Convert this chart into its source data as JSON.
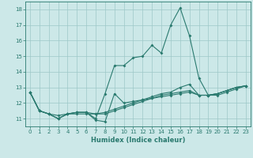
{
  "xlabel": "Humidex (Indice chaleur)",
  "x": [
    0,
    1,
    2,
    3,
    4,
    5,
    6,
    7,
    8,
    9,
    10,
    11,
    12,
    13,
    14,
    15,
    16,
    17,
    18,
    19,
    20,
    21,
    22,
    23
  ],
  "series1": [
    12.7,
    11.5,
    11.3,
    11.0,
    11.3,
    11.4,
    11.4,
    10.9,
    10.8,
    12.6,
    12.0,
    12.1,
    12.2,
    12.4,
    12.6,
    12.7,
    13.0,
    13.2,
    12.5,
    12.5,
    12.6,
    12.8,
    13.0,
    13.1
  ],
  "series2": [
    12.7,
    11.5,
    11.3,
    11.0,
    11.3,
    11.4,
    11.4,
    11.0,
    12.6,
    14.4,
    14.4,
    14.9,
    15.0,
    15.7,
    15.2,
    17.0,
    18.1,
    16.3,
    13.6,
    12.5,
    12.5,
    12.7,
    12.9,
    13.1
  ],
  "series3": [
    12.7,
    11.5,
    11.3,
    11.0,
    11.3,
    11.3,
    11.3,
    11.3,
    11.3,
    11.5,
    11.7,
    11.9,
    12.1,
    12.3,
    12.4,
    12.5,
    12.6,
    12.7,
    12.5,
    12.5,
    12.6,
    12.8,
    13.0,
    13.1
  ],
  "series4": [
    12.7,
    11.5,
    11.3,
    11.2,
    11.3,
    11.4,
    11.4,
    11.3,
    11.4,
    11.6,
    11.8,
    12.0,
    12.2,
    12.3,
    12.5,
    12.6,
    12.7,
    12.8,
    12.5,
    12.5,
    12.6,
    12.8,
    13.0,
    13.1
  ],
  "line_color": "#2a7a6f",
  "bg_color": "#cce8e8",
  "grid_color": "#9ec8c8",
  "ylim": [
    10.5,
    18.5
  ],
  "yticks": [
    11,
    12,
    13,
    14,
    15,
    16,
    17,
    18
  ],
  "xlim": [
    -0.5,
    23.5
  ],
  "xticks": [
    0,
    1,
    2,
    3,
    4,
    5,
    6,
    7,
    8,
    9,
    10,
    11,
    12,
    13,
    14,
    15,
    16,
    17,
    18,
    19,
    20,
    21,
    22,
    23
  ],
  "tick_fontsize": 5.0,
  "xlabel_fontsize": 6.0,
  "marker_size": 2.0,
  "line_width": 0.8
}
